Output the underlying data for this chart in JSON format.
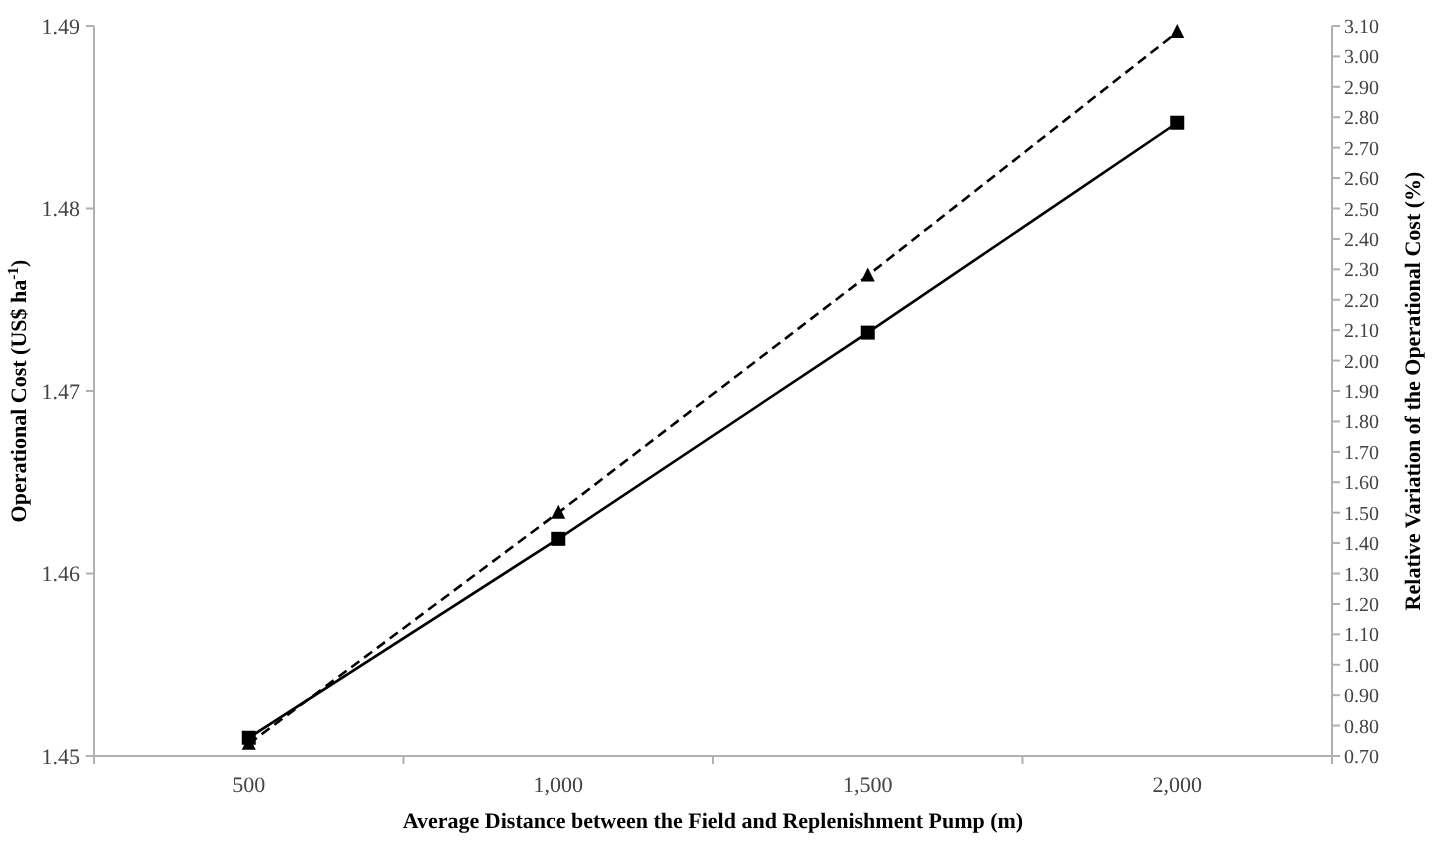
{
  "chart_data": {
    "type": "line",
    "xlabel": "Average Distance between the Field and Replenishment Pump (m)",
    "ylabel": "Operational Cost (US$ ha$^{-1}$)",
    "y2label": "Relative Variation of the Operational Cost (%)",
    "categories": [
      "500",
      "1,000",
      "1,500",
      "2,000"
    ],
    "series": [
      {
        "color": "#000000",
        "values": [
          1.451,
          1.4619,
          1.4732,
          1.4847
        ],
        "marker": "square",
        "line_style": "solid"
      },
      {
        "color": "#000000",
        "values": [
          0.74,
          1.5,
          2.28,
          3.08
        ],
        "marker": "triangle",
        "line_style": "dashed",
        "axis": "y2"
      }
    ],
    "ylim": [
      1.45,
      1.49
    ],
    "yticks": [
      1.45,
      1.46,
      1.47,
      1.48,
      1.49
    ],
    "y2lim": [
      0.7,
      3.1
    ],
    "y2ticks": [
      {
        "value": 0.7,
        "label": "0.70"
      },
      {
        "value": 0.8,
        "label": "0.80"
      },
      {
        "value": 0.9,
        "label": "0.90"
      },
      {
        "value": 1.0,
        "label": "1.00"
      },
      {
        "value": 1.1,
        "label": "1.10"
      },
      {
        "value": 1.2,
        "label": "1.20"
      },
      {
        "value": 1.3,
        "label": "1.30"
      },
      {
        "value": 1.4,
        "label": "1.40"
      },
      {
        "value": 1.5,
        "label": "1.50"
      },
      {
        "value": 1.6,
        "label": "1.60"
      },
      {
        "value": 1.7,
        "label": "1.70"
      },
      {
        "value": 1.8,
        "label": "1.80"
      },
      {
        "value": 1.9,
        "label": "1.90"
      },
      {
        "value": 2.0,
        "label": "2.00"
      },
      {
        "value": 2.1,
        "label": "2.10"
      },
      {
        "value": 2.2,
        "label": "2.20"
      },
      {
        "value": 2.3,
        "label": "2.30"
      },
      {
        "value": 2.4,
        "label": "2.40"
      },
      {
        "value": 2.5,
        "label": "2.50"
      },
      {
        "value": 2.6,
        "label": "2.60"
      },
      {
        "value": 2.7,
        "label": "2.70"
      },
      {
        "value": 2.8,
        "label": "2.80"
      },
      {
        "value": 2.9,
        "label": "2.90"
      },
      {
        "value": 3.0,
        "label": "3.00"
      },
      {
        "value": 3.1,
        "label": "3.10"
      }
    ],
    "grid": false
  }
}
